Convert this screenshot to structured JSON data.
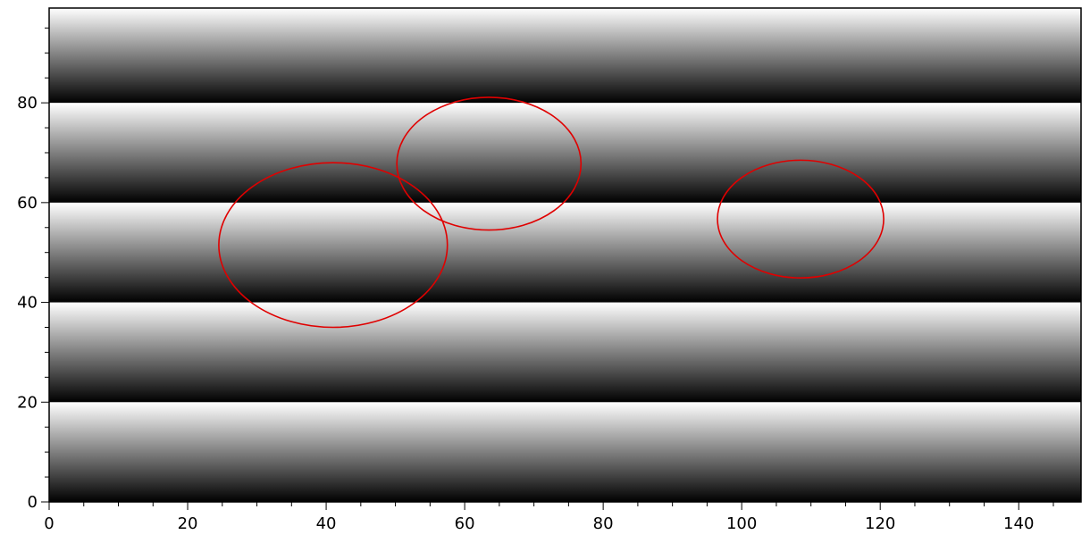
{
  "chart_data": {
    "type": "heatmap",
    "title": "",
    "xlabel": "",
    "ylabel": "",
    "xlim": [
      0,
      149
    ],
    "ylim": [
      0,
      99
    ],
    "colormap": "grayscale",
    "band_period": 20,
    "band_direction": "intensity increases from black at bottom of each band to white at top",
    "x_ticks": [
      0,
      20,
      40,
      60,
      80,
      100,
      120,
      140
    ],
    "y_ticks": [
      0,
      20,
      40,
      60,
      80
    ],
    "x_minor_step": 5,
    "y_minor_step": 5,
    "grid": false,
    "ellipses": [
      {
        "cx": 41,
        "cy": 51.5,
        "rx": 16.5,
        "ry": 16.5,
        "color": "#e00000"
      },
      {
        "cx": 63.5,
        "cy": 67.8,
        "rx": 13.3,
        "ry": 13.3,
        "color": "#e00000"
      },
      {
        "cx": 108.5,
        "cy": 56.7,
        "rx": 12,
        "ry": 11.8,
        "color": "#e00000"
      }
    ]
  }
}
